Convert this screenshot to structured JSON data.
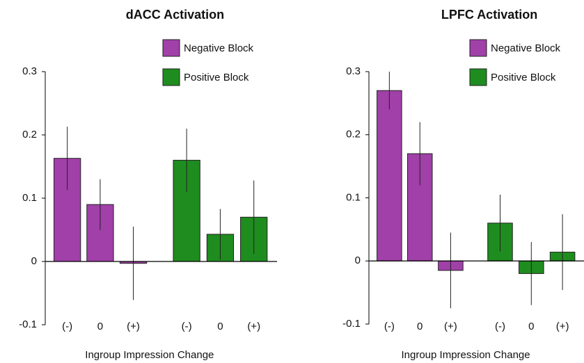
{
  "chart_data": [
    {
      "type": "bar",
      "title": "dACC Activation",
      "x_label": "Ingroup Impression Change",
      "categories": [
        "(-)",
        "0",
        "(+)"
      ],
      "series": [
        {
          "name": "Negative Block",
          "color": "#a040a8",
          "values": [
            0.163,
            0.09,
            -0.003
          ],
          "errors": [
            0.05,
            0.04,
            0.058
          ]
        },
        {
          "name": "Positive Block",
          "color": "#1f8c1f",
          "values": [
            0.16,
            0.043,
            0.07
          ],
          "errors": [
            0.05,
            0.04,
            0.058
          ]
        }
      ],
      "ylim": [
        -0.1,
        0.3
      ],
      "yticks": [
        -0.1,
        0,
        0.1,
        0.2,
        0.3
      ],
      "legend": "top-right"
    },
    {
      "type": "bar",
      "title": "LPFC Activation",
      "x_label": "Ingroup Impression Change",
      "categories": [
        "(-)",
        "0",
        "(+)"
      ],
      "series": [
        {
          "name": "Negative Block",
          "color": "#a040a8",
          "values": [
            0.27,
            0.17,
            -0.015
          ],
          "errors": [
            0.03,
            0.05,
            0.06
          ]
        },
        {
          "name": "Positive Block",
          "color": "#1f8c1f",
          "values": [
            0.06,
            -0.02,
            0.014
          ],
          "errors": [
            0.045,
            0.05,
            0.06
          ]
        }
      ],
      "ylim": [
        -0.1,
        0.3
      ],
      "yticks": [
        -0.1,
        0,
        0.1,
        0.2,
        0.3
      ],
      "legend": "top-right"
    }
  ]
}
